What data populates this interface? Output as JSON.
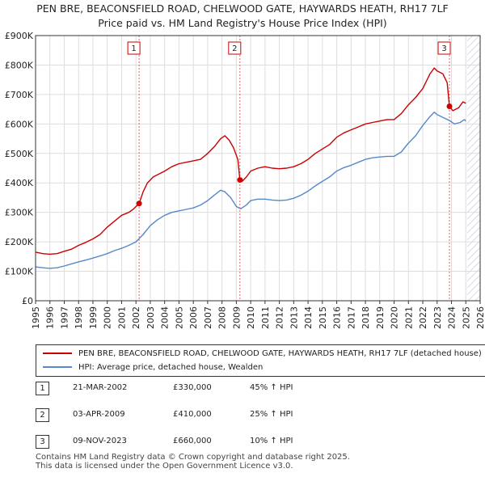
{
  "title": {
    "line1": "PEN BRE, BEACONSFIELD ROAD, CHELWOOD GATE, HAYWARDS HEATH, RH17 7LF",
    "line2": "Price paid vs. HM Land Registry's House Price Index (HPI)"
  },
  "chart_data": {
    "type": "line",
    "x_range": [
      1995,
      2026
    ],
    "y_range": [
      0,
      900000
    ],
    "y_ticks": [
      {
        "value": 0,
        "label": "£0"
      },
      {
        "value": 100000,
        "label": "£100K"
      },
      {
        "value": 200000,
        "label": "£200K"
      },
      {
        "value": 300000,
        "label": "£300K"
      },
      {
        "value": 400000,
        "label": "£400K"
      },
      {
        "value": 500000,
        "label": "£500K"
      },
      {
        "value": 600000,
        "label": "£600K"
      },
      {
        "value": 700000,
        "label": "£700K"
      },
      {
        "value": 800000,
        "label": "£800K"
      },
      {
        "value": 900000,
        "label": "£900K"
      }
    ],
    "x_ticks": [
      "1995",
      "1996",
      "1997",
      "1998",
      "1999",
      "2000",
      "2001",
      "2002",
      "2003",
      "2004",
      "2005",
      "2006",
      "2007",
      "2008",
      "2009",
      "2010",
      "2011",
      "2012",
      "2013",
      "2014",
      "2015",
      "2016",
      "2017",
      "2018",
      "2019",
      "2020",
      "2021",
      "2022",
      "2023",
      "2024",
      "2025",
      "2026"
    ],
    "future_start": 2025.1,
    "series": [
      {
        "name": "PEN BRE, BEACONSFIELD ROAD, CHELWOOD GATE, HAYWARDS HEATH, RH17 7LF (detached house)",
        "color": "#cc0000",
        "points": [
          [
            1995.0,
            165000
          ],
          [
            1995.5,
            160000
          ],
          [
            1996.0,
            158000
          ],
          [
            1996.5,
            160000
          ],
          [
            1997.0,
            168000
          ],
          [
            1997.5,
            175000
          ],
          [
            1998.0,
            188000
          ],
          [
            1998.5,
            198000
          ],
          [
            1999.0,
            210000
          ],
          [
            1999.5,
            225000
          ],
          [
            2000.0,
            250000
          ],
          [
            2000.5,
            270000
          ],
          [
            2001.0,
            290000
          ],
          [
            2001.5,
            300000
          ],
          [
            2001.8,
            310000
          ],
          [
            2002.22,
            330000
          ],
          [
            2002.5,
            370000
          ],
          [
            2002.8,
            400000
          ],
          [
            2003.2,
            420000
          ],
          [
            2003.6,
            430000
          ],
          [
            2004.0,
            440000
          ],
          [
            2004.5,
            455000
          ],
          [
            2005.0,
            465000
          ],
          [
            2005.5,
            470000
          ],
          [
            2006.0,
            475000
          ],
          [
            2006.5,
            480000
          ],
          [
            2007.0,
            500000
          ],
          [
            2007.5,
            525000
          ],
          [
            2007.9,
            550000
          ],
          [
            2008.2,
            560000
          ],
          [
            2008.5,
            545000
          ],
          [
            2008.8,
            520000
          ],
          [
            2009.1,
            480000
          ],
          [
            2009.25,
            410000
          ],
          [
            2009.4,
            405000
          ],
          [
            2009.7,
            420000
          ],
          [
            2010.0,
            440000
          ],
          [
            2010.5,
            450000
          ],
          [
            2011.0,
            455000
          ],
          [
            2011.5,
            450000
          ],
          [
            2012.0,
            448000
          ],
          [
            2012.5,
            450000
          ],
          [
            2013.0,
            455000
          ],
          [
            2013.5,
            465000
          ],
          [
            2014.0,
            480000
          ],
          [
            2014.5,
            500000
          ],
          [
            2015.0,
            515000
          ],
          [
            2015.5,
            530000
          ],
          [
            2016.0,
            555000
          ],
          [
            2016.5,
            570000
          ],
          [
            2017.0,
            580000
          ],
          [
            2017.5,
            590000
          ],
          [
            2018.0,
            600000
          ],
          [
            2018.5,
            605000
          ],
          [
            2019.0,
            610000
          ],
          [
            2019.5,
            615000
          ],
          [
            2020.0,
            615000
          ],
          [
            2020.5,
            635000
          ],
          [
            2021.0,
            665000
          ],
          [
            2021.5,
            690000
          ],
          [
            2022.0,
            720000
          ],
          [
            2022.5,
            770000
          ],
          [
            2022.8,
            790000
          ],
          [
            2023.0,
            780000
          ],
          [
            2023.4,
            770000
          ],
          [
            2023.7,
            740000
          ],
          [
            2023.86,
            660000
          ],
          [
            2024.1,
            645000
          ],
          [
            2024.5,
            655000
          ],
          [
            2024.8,
            675000
          ],
          [
            2025.0,
            670000
          ]
        ]
      },
      {
        "name": "HPI: Average price, detached house, Wealden",
        "color": "#5588cc",
        "points": [
          [
            1995.0,
            115000
          ],
          [
            1995.5,
            112000
          ],
          [
            1996.0,
            110000
          ],
          [
            1996.5,
            112000
          ],
          [
            1997.0,
            118000
          ],
          [
            1997.5,
            125000
          ],
          [
            1998.0,
            132000
          ],
          [
            1998.5,
            138000
          ],
          [
            1999.0,
            145000
          ],
          [
            1999.5,
            152000
          ],
          [
            2000.0,
            160000
          ],
          [
            2000.5,
            170000
          ],
          [
            2001.0,
            178000
          ],
          [
            2001.5,
            188000
          ],
          [
            2002.0,
            200000
          ],
          [
            2002.5,
            225000
          ],
          [
            2003.0,
            255000
          ],
          [
            2003.5,
            275000
          ],
          [
            2004.0,
            290000
          ],
          [
            2004.5,
            300000
          ],
          [
            2005.0,
            305000
          ],
          [
            2005.5,
            310000
          ],
          [
            2006.0,
            315000
          ],
          [
            2006.5,
            325000
          ],
          [
            2007.0,
            340000
          ],
          [
            2007.5,
            360000
          ],
          [
            2007.9,
            375000
          ],
          [
            2008.2,
            370000
          ],
          [
            2008.6,
            350000
          ],
          [
            2009.0,
            320000
          ],
          [
            2009.3,
            312000
          ],
          [
            2009.7,
            325000
          ],
          [
            2010.0,
            340000
          ],
          [
            2010.5,
            345000
          ],
          [
            2011.0,
            345000
          ],
          [
            2011.5,
            342000
          ],
          [
            2012.0,
            340000
          ],
          [
            2012.5,
            342000
          ],
          [
            2013.0,
            348000
          ],
          [
            2013.5,
            358000
          ],
          [
            2014.0,
            372000
          ],
          [
            2014.5,
            390000
          ],
          [
            2015.0,
            405000
          ],
          [
            2015.5,
            420000
          ],
          [
            2016.0,
            440000
          ],
          [
            2016.5,
            452000
          ],
          [
            2017.0,
            460000
          ],
          [
            2017.5,
            470000
          ],
          [
            2018.0,
            480000
          ],
          [
            2018.5,
            485000
          ],
          [
            2019.0,
            488000
          ],
          [
            2019.5,
            490000
          ],
          [
            2020.0,
            490000
          ],
          [
            2020.5,
            505000
          ],
          [
            2021.0,
            535000
          ],
          [
            2021.5,
            560000
          ],
          [
            2022.0,
            595000
          ],
          [
            2022.5,
            625000
          ],
          [
            2022.8,
            640000
          ],
          [
            2023.0,
            632000
          ],
          [
            2023.4,
            622000
          ],
          [
            2023.86,
            612000
          ],
          [
            2024.2,
            600000
          ],
          [
            2024.6,
            605000
          ],
          [
            2024.9,
            615000
          ],
          [
            2025.0,
            610000
          ]
        ]
      }
    ],
    "sales": [
      {
        "num": "1",
        "x": 2002.22,
        "y": 330000
      },
      {
        "num": "2",
        "x": 2009.25,
        "y": 410000
      },
      {
        "num": "3",
        "x": 2023.86,
        "y": 660000
      }
    ]
  },
  "legend": {
    "red_label": "PEN BRE, BEACONSFIELD ROAD, CHELWOOD GATE, HAYWARDS HEATH, RH17 7LF (detached house)",
    "blue_label": "HPI: Average price, detached house, Wealden"
  },
  "transactions": [
    {
      "num": "1",
      "date": "21-MAR-2002",
      "price": "£330,000",
      "hpi": "45% ↑ HPI"
    },
    {
      "num": "2",
      "date": "03-APR-2009",
      "price": "£410,000",
      "hpi": "25% ↑ HPI"
    },
    {
      "num": "3",
      "date": "09-NOV-2023",
      "price": "£660,000",
      "hpi": "10% ↑ HPI"
    }
  ],
  "footer": {
    "line1": "Contains HM Land Registry data © Crown copyright and database right 2025.",
    "line2": "This data is licensed under the Open Government Licence v3.0."
  },
  "colors": {
    "red": "#cc0000",
    "blue": "#5588cc",
    "grid": "#dddddd",
    "future_hatch": "#d8d8e8"
  }
}
